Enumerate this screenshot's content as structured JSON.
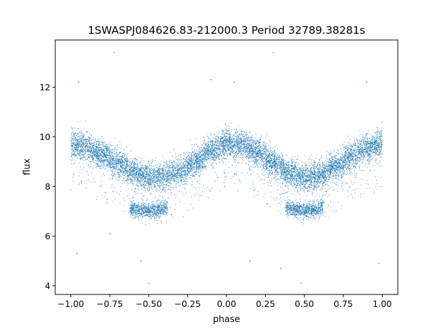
{
  "chart_data": {
    "type": "scatter",
    "title": "1SWASPJ084626.83-212000.3 Period 32789.38281s",
    "xlabel": "phase",
    "ylabel": "flux",
    "xlim": [
      -1.1,
      1.1
    ],
    "ylim": [
      3.65,
      13.9
    ],
    "xticks": [
      -1.0,
      -0.75,
      -0.5,
      -0.25,
      0.0,
      0.25,
      0.5,
      0.75,
      1.0
    ],
    "xtick_labels": [
      "−1.00",
      "−0.75",
      "−0.50",
      "−0.25",
      "0.00",
      "0.25",
      "0.50",
      "0.75",
      "1.00"
    ],
    "yticks": [
      4,
      6,
      8,
      10,
      12
    ],
    "ytick_labels": [
      "4",
      "6",
      "8",
      "10",
      "12"
    ],
    "grid": false,
    "marker_color": "#1f77b4",
    "series": [
      {
        "description_points": "phase-folded light curve sampled densely",
        "main_branch": {
          "x": [
            -1.0,
            -0.9,
            -0.8,
            -0.7,
            -0.6,
            -0.5,
            -0.4,
            -0.3,
            -0.2,
            -0.1,
            0.0,
            0.1,
            0.2,
            0.3,
            0.4,
            0.5,
            0.6,
            0.7,
            0.8,
            0.9,
            1.0
          ],
          "y": [
            9.7,
            9.6,
            9.3,
            8.95,
            8.6,
            8.4,
            8.4,
            8.6,
            9.0,
            9.45,
            9.75,
            9.7,
            9.35,
            8.95,
            8.55,
            8.35,
            8.45,
            8.8,
            9.2,
            9.55,
            9.75
          ],
          "spread": 0.28
        },
        "low_branch": {
          "x": [
            -0.62,
            -0.55,
            -0.5,
            -0.45,
            -0.38,
            0.38,
            0.45,
            0.5,
            0.55,
            0.62
          ],
          "y": [
            7.1,
            7.05,
            7.0,
            7.05,
            7.15,
            7.15,
            7.05,
            7.0,
            7.05,
            7.15
          ],
          "spread": 0.15
        },
        "outliers": [
          {
            "x": -0.72,
            "y": 13.4
          },
          {
            "x": 0.3,
            "y": 13.4
          },
          {
            "x": -0.95,
            "y": 12.2
          },
          {
            "x": -0.1,
            "y": 12.3
          },
          {
            "x": 0.05,
            "y": 12.2
          },
          {
            "x": 0.9,
            "y": 12.2
          },
          {
            "x": -0.5,
            "y": 4.1
          },
          {
            "x": 0.48,
            "y": 4.1
          },
          {
            "x": -0.96,
            "y": 5.3
          },
          {
            "x": 0.98,
            "y": 4.9
          },
          {
            "x": -0.55,
            "y": 5.0
          },
          {
            "x": 0.35,
            "y": 4.7
          },
          {
            "x": 0.15,
            "y": 5.0
          },
          {
            "x": -0.75,
            "y": 6.1
          }
        ]
      }
    ]
  }
}
